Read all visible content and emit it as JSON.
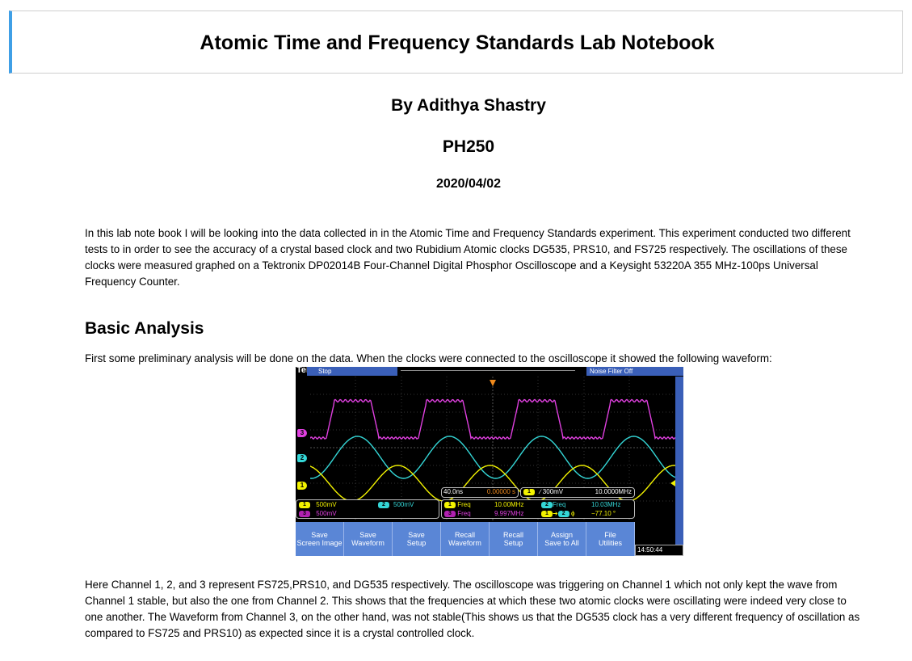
{
  "header": {
    "title": "Atomic Time and Frequency Standards Lab Notebook"
  },
  "meta": {
    "author": "By Adithya Shastry",
    "course": "PH250",
    "date": "2020/04/02"
  },
  "intro": "In this lab note book I will be looking into the data collected in in the Atomic Time and Frequency Standards experiment. This experiment conducted two different tests to in order to see the accuracy of a crystal based clock and two Rubidium Atomic clocks DG535, PRS10, and FS725 respectively. The oscillations of these clocks were measured graphed on a Tektronix DP02014B Four-Channel Digital Phosphor Oscilloscope and a Keysight 53220A 355 MHz-100ps Universal Frequency Counter.",
  "basic_analysis": {
    "heading": "Basic Analysis",
    "preliminary": "First some preliminary analysis will be done on the data. When the clocks were connected to the oscilloscope it showed the following waveform:",
    "channels": "Here Channel 1, 2, and 3 represent FS725,PRS10, and DG535 respectively. The oscilloscope was triggering on Channel 1 which not only kept the wave from Channel 1 stable, but also the one from Channel 2. This shows that the frequencies at which these two atomic clocks were oscillating were indeed very close to one another. The Waveform from Channel 3, on the other hand, was not stable(This shows us that the DG535 clock has a very different frequency of oscillation as compared to FS725 and PRS10) as expected since it is a crystal controlled clock."
  },
  "scope": {
    "brand": "Tek",
    "status": "Stop",
    "noise_filter": "Noise Filter Off",
    "markers": {
      "ch1": "1",
      "ch2": "2",
      "ch3": "3"
    },
    "timebase": "40.0ns",
    "delay": "0.00000 s",
    "trigger_ch": "1",
    "trigger_level": "∕ 300mV",
    "trigger_freq": "10.0000MHz",
    "ch1_scale": "500mV",
    "ch2_scale": "500mV",
    "ch3_scale": "500mV",
    "meas": {
      "f1_label": "Freq",
      "f1_value": "10.00MHz",
      "f2_label": "Freq",
      "f2_value": "10.03MHz",
      "f3_label": "Freq",
      "f3_value": "9.997MHz",
      "phase_value": "−77.10 °"
    },
    "buttons": [
      {
        "line1": "Save",
        "line2": "Screen Image"
      },
      {
        "line1": "Save",
        "line2": "Waveform"
      },
      {
        "line1": "Save",
        "line2": "Setup"
      },
      {
        "line1": "Recall",
        "line2": "Waveform"
      },
      {
        "line1": "Recall",
        "line2": "Setup"
      },
      {
        "line1": "Assign",
        "line2": "Save to All"
      },
      {
        "line1": "File",
        "line2": "Utilities"
      }
    ],
    "clock": "14:50:44",
    "colors": {
      "ch1": "#f2f200",
      "ch2": "#34d6d6",
      "ch3": "#e040e0",
      "bar": "#3a5fb8"
    }
  }
}
